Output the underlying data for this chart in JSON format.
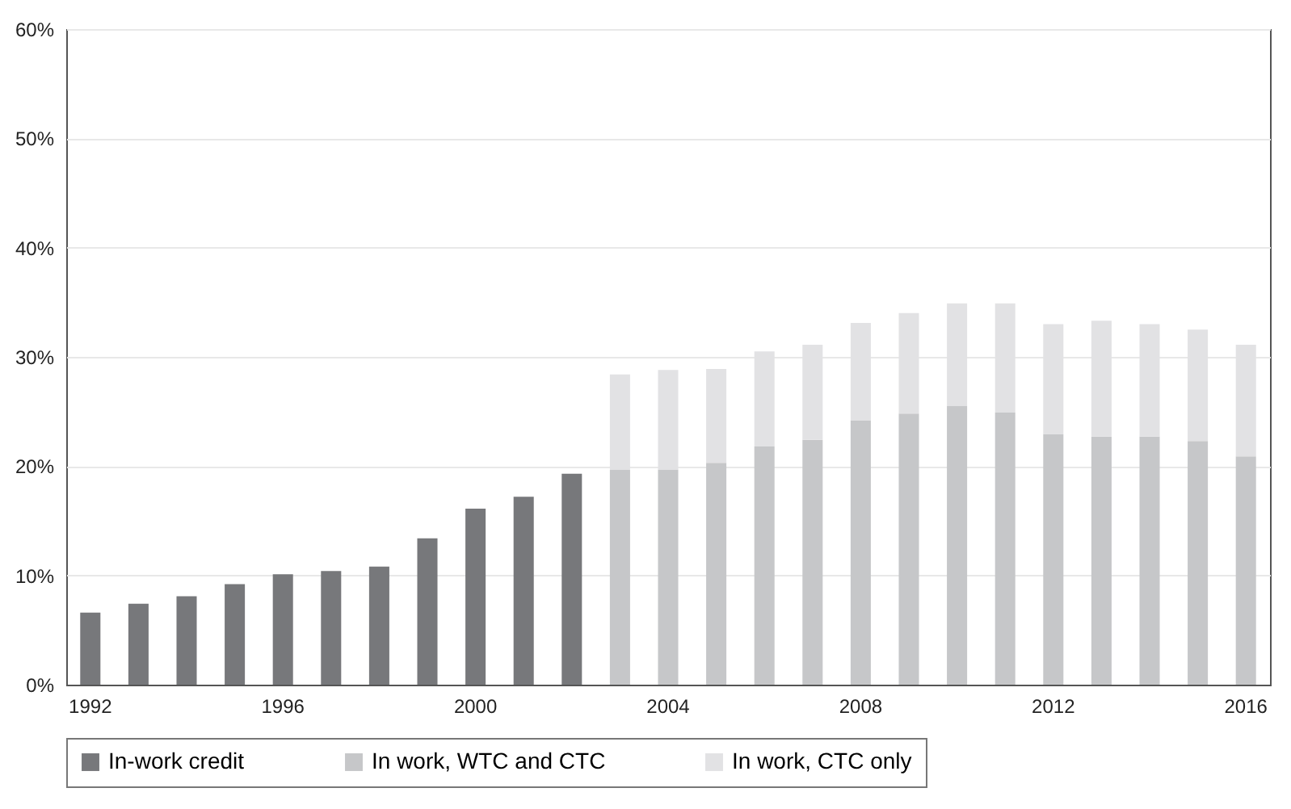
{
  "chart_data": {
    "type": "bar",
    "stacked": true,
    "categories": [
      "1992",
      null,
      null,
      null,
      "1996",
      null,
      null,
      null,
      "2000",
      null,
      null,
      null,
      "2004",
      null,
      null,
      null,
      "2008",
      null,
      null,
      null,
      "2012",
      null,
      null,
      null,
      "2016"
    ],
    "series": [
      {
        "name": "In-work credit",
        "color": "#77787b",
        "values": [
          6.6,
          7.4,
          8.1,
          9.2,
          10.1,
          10.4,
          10.8,
          13.4,
          16.1,
          17.2,
          19.3,
          null,
          null,
          null,
          null,
          null,
          null,
          null,
          null,
          null,
          null,
          null,
          null,
          null,
          null
        ]
      },
      {
        "name": "In work, WTC and CTC",
        "color": "#c6c7c9",
        "values": [
          null,
          null,
          null,
          null,
          null,
          null,
          null,
          null,
          null,
          null,
          null,
          19.7,
          19.7,
          20.3,
          21.8,
          22.4,
          24.2,
          24.8,
          25.5,
          24.9,
          22.9,
          22.7,
          22.7,
          22.3,
          20.9
        ]
      },
      {
        "name": "In work, CTC only",
        "color": "#e2e2e4",
        "values": [
          null,
          null,
          null,
          null,
          null,
          null,
          null,
          null,
          null,
          null,
          null,
          8.7,
          9.1,
          8.6,
          8.7,
          8.7,
          8.9,
          9.2,
          9.4,
          10.0,
          10.1,
          10.6,
          10.3,
          10.2,
          10.2
        ]
      }
    ],
    "ylim": [
      0,
      60
    ],
    "yticks": [
      {
        "value": 0,
        "label": "0%"
      },
      {
        "value": 10,
        "label": "10%"
      },
      {
        "value": 20,
        "label": "20%"
      },
      {
        "value": 30,
        "label": "30%"
      },
      {
        "value": 40,
        "label": "40%"
      },
      {
        "value": 50,
        "label": "50%"
      },
      {
        "value": 60,
        "label": "60%"
      }
    ],
    "grid": "y",
    "legend": "bottom"
  }
}
